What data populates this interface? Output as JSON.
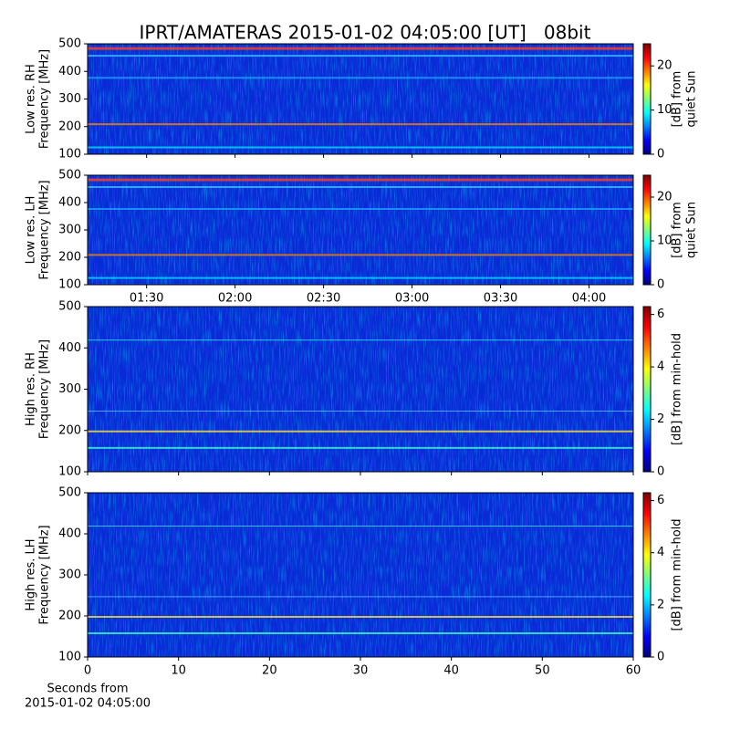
{
  "suptitle": "IPRT/AMATERAS 2015-01-02 04:05:00 [UT]   08bit",
  "chart_data": [
    {
      "type": "heatmap",
      "ylabel": [
        "Low res. RH",
        "Frequency [MHz]"
      ],
      "ylim": [
        100,
        500
      ],
      "yticks": [
        100,
        200,
        300,
        400,
        500
      ],
      "xlim": [
        70,
        255
      ],
      "colormap": "jet",
      "colorbar_label": [
        "[dB] from",
        "quiet Sun"
      ],
      "clim": [
        0,
        25
      ],
      "cticks": [
        0,
        10,
        20
      ]
    },
    {
      "type": "heatmap",
      "ylabel": [
        "Low res. LH",
        "Frequency [MHz]"
      ],
      "ylim": [
        100,
        500
      ],
      "yticks": [
        100,
        200,
        300,
        400,
        500
      ],
      "xlim": [
        70,
        255
      ],
      "xticks": [
        {
          "value": 90,
          "label": "01:30"
        },
        {
          "value": 120,
          "label": "02:00"
        },
        {
          "value": 150,
          "label": "02:30"
        },
        {
          "value": 180,
          "label": "03:00"
        },
        {
          "value": 210,
          "label": "03:30"
        },
        {
          "value": 240,
          "label": "04:00"
        }
      ],
      "colormap": "jet",
      "colorbar_label": [
        "[dB] from",
        "quiet Sun"
      ],
      "clim": [
        0,
        25
      ],
      "cticks": [
        0,
        10,
        20
      ]
    },
    {
      "type": "heatmap",
      "ylabel": [
        "High res. RH",
        "Frequency [MHz]"
      ],
      "ylim": [
        100,
        500
      ],
      "yticks": [
        100,
        200,
        300,
        400,
        500
      ],
      "xlim": [
        0,
        60
      ],
      "colormap": "jet",
      "colorbar_label": [
        "[dB] from min-hold"
      ],
      "clim": [
        0,
        6.3
      ],
      "cticks": [
        0,
        2,
        4,
        6
      ]
    },
    {
      "type": "heatmap",
      "ylabel": [
        "High res. LH",
        "Frequency [MHz]"
      ],
      "ylim": [
        100,
        500
      ],
      "yticks": [
        100,
        200,
        300,
        400,
        500
      ],
      "xlim": [
        0,
        60
      ],
      "xticks": [
        0,
        10,
        20,
        30,
        40,
        50,
        60
      ],
      "xlabel": [
        "Seconds from",
        "2015-01-02 04:05:00"
      ],
      "colormap": "jet",
      "colorbar_label": [
        "[dB] from min-hold"
      ],
      "clim": [
        0,
        6.3
      ],
      "cticks": [
        0,
        2,
        4,
        6
      ]
    }
  ]
}
